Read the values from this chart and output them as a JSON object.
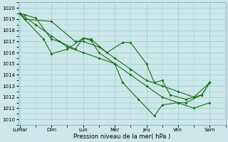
{
  "xlabel": "Pression niveau de la mer( hPa )",
  "background_color": "#cce8e8",
  "grid_color": "#99cccc",
  "line_color": "#1a6b1a",
  "ylim": [
    1009.5,
    1020.5
  ],
  "yticks": [
    1010,
    1011,
    1012,
    1013,
    1014,
    1015,
    1016,
    1017,
    1018,
    1019,
    1020
  ],
  "x_labels": [
    "LuMar",
    "Dim",
    "Lun",
    "Mer",
    "Jeu",
    "Ven",
    "Sam"
  ],
  "x_positions": [
    0,
    2,
    4,
    6,
    8,
    10,
    12
  ],
  "xlim": [
    -0.1,
    13.0
  ],
  "line1_x": [
    0,
    0.3,
    1.0,
    2.0,
    2.5,
    3.5,
    4.0,
    4.5,
    5.5,
    6.5,
    7.0,
    8.0,
    8.5,
    9.0,
    9.5,
    10.5,
    11.5,
    12.0
  ],
  "line1_y": [
    1019.5,
    1019.4,
    1019.1,
    1017.2,
    1017.0,
    1016.3,
    1017.3,
    1017.2,
    1016.0,
    1016.9,
    1016.9,
    1015.0,
    1013.3,
    1013.5,
    1012.2,
    1011.8,
    1012.2,
    1013.3
  ],
  "line2_x": [
    0,
    0.3,
    1.5,
    2.0,
    3.0,
    4.0,
    4.5,
    5.0,
    6.0,
    6.5,
    7.5,
    8.5,
    9.0,
    10.0,
    10.5,
    11.5,
    12.0
  ],
  "line2_y": [
    1019.5,
    1019.0,
    1017.2,
    1015.9,
    1016.3,
    1017.3,
    1017.1,
    1016.0,
    1015.0,
    1013.3,
    1011.8,
    1010.3,
    1011.3,
    1011.5,
    1011.5,
    1012.2,
    1013.3
  ],
  "line3_x": [
    0,
    0.3,
    2.0,
    3.5,
    4.0,
    5.0,
    6.0,
    7.0,
    8.0,
    9.0,
    10.0,
    11.0,
    12.0
  ],
  "line3_y": [
    1019.5,
    1019.0,
    1018.8,
    1017.0,
    1017.0,
    1016.5,
    1015.5,
    1014.5,
    1013.5,
    1013.0,
    1012.5,
    1012.0,
    1013.3
  ],
  "line4_x": [
    0,
    1.0,
    2.0,
    3.0,
    4.0,
    5.0,
    6.0,
    7.0,
    8.0,
    9.0,
    10.0,
    11.0,
    12.0
  ],
  "line4_y": [
    1019.5,
    1018.5,
    1017.5,
    1016.5,
    1016.0,
    1015.5,
    1015.0,
    1014.0,
    1013.0,
    1012.0,
    1011.5,
    1011.0,
    1011.5
  ]
}
